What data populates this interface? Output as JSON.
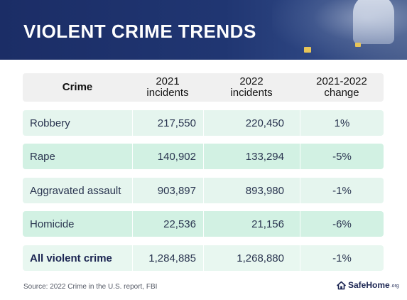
{
  "header": {
    "title": "VIOLENT CRIME TRENDS"
  },
  "table": {
    "columns": [
      {
        "line1": "Crime",
        "line2": ""
      },
      {
        "line1": "2021",
        "line2": "incidents"
      },
      {
        "line1": "2022",
        "line2": "incidents"
      },
      {
        "line1": "2021-2022",
        "line2": "change"
      }
    ],
    "rows": [
      {
        "crime": "Robbery",
        "y2021": "217,550",
        "y2022": "220,450",
        "change": "1%"
      },
      {
        "crime": "Rape",
        "y2021": "140,902",
        "y2022": "133,294",
        "change": "-5%"
      },
      {
        "crime": "Aggravated assault",
        "y2021": "903,897",
        "y2022": "893,980",
        "change": "-1%"
      },
      {
        "crime": "Homicide",
        "y2021": "22,536",
        "y2022": "21,156",
        "change": "-6%"
      },
      {
        "crime": "All violent crime",
        "y2021": "1,284,885",
        "y2022": "1,268,880",
        "change": "-1%"
      }
    ]
  },
  "footer": {
    "source": "Source: 2022 Crime in the U.S. report, FBI",
    "logo_name": "SafeHome",
    "logo_suffix": ".org"
  },
  "colors": {
    "header_bg": "#1b2d66",
    "row_light": "#e5f5ee",
    "row_mid": "#d2f1e3",
    "header_row": "#f0f0f0"
  }
}
